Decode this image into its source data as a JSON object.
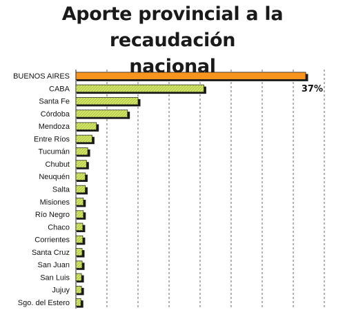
{
  "chart_data": {
    "type": "bar",
    "orientation": "horizontal",
    "title_lines": [
      "Aporte provincial a la recaudación",
      "nacional"
    ],
    "categories": [
      "BUENOS AIRES",
      "CABA",
      "Santa Fe",
      "Córdoba",
      "Mendoza",
      "Entre Ríos",
      "Tucumán",
      "Chubut",
      "Neuquén",
      "Salta",
      "Misiones",
      "Río Negro",
      "Chaco",
      "Corrientes",
      "Santa Cruz",
      "San Juan",
      "San Luis",
      "Jujuy",
      "Sgo. del Estero"
    ],
    "values": [
      37,
      20.6,
      10,
      8.3,
      3.3,
      2.6,
      1.9,
      1.7,
      1.5,
      1.5,
      1.2,
      1.2,
      1.1,
      1.1,
      1.0,
      1.0,
      0.9,
      0.9,
      0.8
    ],
    "unit": "%",
    "data_labels": [
      {
        "category": "BUENOS AIRES",
        "text": "37%"
      }
    ],
    "highlight_category": "BUENOS AIRES",
    "xlim": [
      0,
      40
    ],
    "grid": "vertical dashed",
    "colors": {
      "highlight": "#F7941D",
      "bar": "#D4E66A",
      "bar_border": "#1a1a1a",
      "shadow": "#1a1a1a",
      "grid": "#555555"
    }
  }
}
